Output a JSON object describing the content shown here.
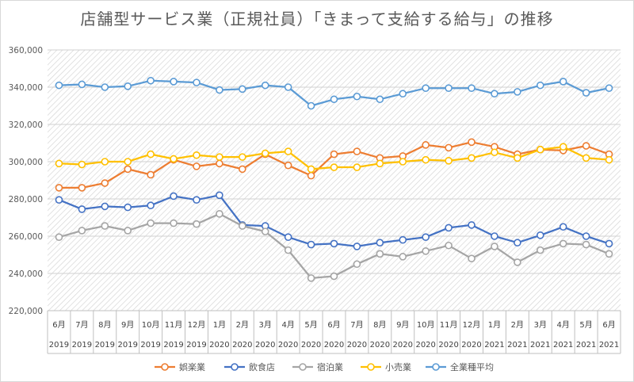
{
  "chart_data": {
    "type": "line",
    "title": "店舗型サービス業（正規社員）「きまって支給する給与」の推移",
    "ylim": [
      220000,
      360000
    ],
    "yticks": [
      "220,000",
      "240,000",
      "260,000",
      "280,000",
      "300,000",
      "320,000",
      "340,000",
      "360,000"
    ],
    "categories": [
      {
        "month": "6月",
        "year": "2019"
      },
      {
        "month": "7月",
        "year": "2019"
      },
      {
        "month": "8月",
        "year": "2019"
      },
      {
        "month": "9月",
        "year": "2019"
      },
      {
        "month": "10月",
        "year": "2019"
      },
      {
        "month": "11月",
        "year": "2019"
      },
      {
        "month": "12月",
        "year": "2019"
      },
      {
        "month": "1月",
        "year": "2020"
      },
      {
        "month": "2月",
        "year": "2020"
      },
      {
        "month": "3月",
        "year": "2020"
      },
      {
        "month": "4月",
        "year": "2020"
      },
      {
        "month": "5月",
        "year": "2020"
      },
      {
        "month": "6月",
        "year": "2020"
      },
      {
        "month": "7月",
        "year": "2020"
      },
      {
        "month": "8月",
        "year": "2020"
      },
      {
        "month": "9月",
        "year": "2020"
      },
      {
        "month": "10月",
        "year": "2020"
      },
      {
        "month": "11月",
        "year": "2020"
      },
      {
        "month": "12月",
        "year": "2020"
      },
      {
        "month": "1月",
        "year": "2021"
      },
      {
        "month": "2月",
        "year": "2021"
      },
      {
        "month": "3月",
        "year": "2021"
      },
      {
        "month": "4月",
        "year": "2021"
      },
      {
        "month": "5月",
        "year": "2021"
      },
      {
        "month": "6月",
        "year": "2021"
      }
    ],
    "series": [
      {
        "name": "娯楽業",
        "color": "#ED7D31",
        "values": [
          286000,
          286000,
          288500,
          296000,
          293000,
          301000,
          297500,
          299000,
          296000,
          304000,
          298000,
          292500,
          304000,
          305500,
          302000,
          303000,
          309000,
          307500,
          310500,
          308000,
          304000,
          306500,
          306000,
          308500,
          304000
        ]
      },
      {
        "name": "飲食店",
        "color": "#4472C4",
        "values": [
          279500,
          274500,
          276000,
          275500,
          276500,
          281500,
          279500,
          282000,
          266000,
          265500,
          259500,
          255500,
          256000,
          254500,
          256500,
          258000,
          259500,
          264500,
          266000,
          260000,
          256500,
          260500,
          265000,
          260000,
          256000
        ]
      },
      {
        "name": "宿泊業",
        "color": "#A5A5A5",
        "values": [
          259500,
          263000,
          265500,
          263000,
          267000,
          267000,
          266500,
          272000,
          265500,
          262500,
          252500,
          237500,
          238500,
          245000,
          250500,
          249000,
          252000,
          255000,
          248000,
          254500,
          246000,
          252500,
          256000,
          255500,
          250500
        ]
      },
      {
        "name": "小売業",
        "color": "#FFC000",
        "values": [
          299000,
          298500,
          300000,
          300000,
          304000,
          301500,
          303500,
          302500,
          302500,
          304500,
          305500,
          296000,
          297000,
          297000,
          299000,
          300000,
          301000,
          300500,
          302000,
          305000,
          302000,
          306500,
          308000,
          302000,
          301000
        ]
      },
      {
        "name": "全業種平均",
        "color": "#5B9BD5",
        "values": [
          341000,
          341500,
          340000,
          340500,
          343500,
          343000,
          342500,
          338500,
          339000,
          341000,
          340000,
          330000,
          333500,
          335000,
          333500,
          336500,
          339500,
          339500,
          339500,
          336500,
          337500,
          341000,
          343000,
          337000,
          339500
        ]
      }
    ]
  }
}
